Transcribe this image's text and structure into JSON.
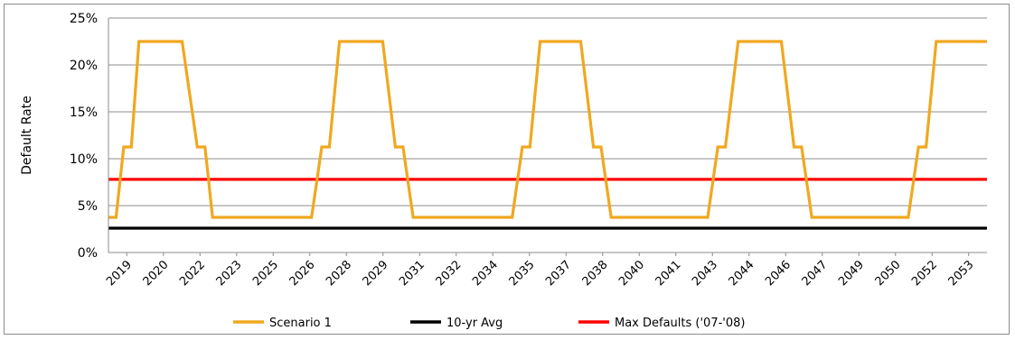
{
  "chart_data": {
    "type": "line",
    "ylabel": "Default Rate",
    "ylim": [
      0,
      25
    ],
    "yticks": [
      "0%",
      "5%",
      "10%",
      "15%",
      "20%",
      "25%"
    ],
    "categories": [
      "2019",
      "2020",
      "2022",
      "2023",
      "2025",
      "2026",
      "2028",
      "2029",
      "2031",
      "2032",
      "2034",
      "2035",
      "2037",
      "2038",
      "2040",
      "2041",
      "2043",
      "2044",
      "2046",
      "2047",
      "2049",
      "2050",
      "2052",
      "2053"
    ],
    "grid": true,
    "legend_position": "bottom",
    "series": [
      {
        "name": "Scenario 1",
        "color": "#f0a820",
        "points": [
          [
            2019.0,
            3.75
          ],
          [
            2019.3,
            3.75
          ],
          [
            2019.6,
            11.25
          ],
          [
            2019.9,
            11.25
          ],
          [
            2020.2,
            22.5
          ],
          [
            2021.9,
            22.5
          ],
          [
            2022.5,
            11.25
          ],
          [
            2022.8,
            11.25
          ],
          [
            2023.1,
            3.75
          ],
          [
            2027.0,
            3.75
          ],
          [
            2027.4,
            11.25
          ],
          [
            2027.7,
            11.25
          ],
          [
            2028.1,
            22.5
          ],
          [
            2029.8,
            22.5
          ],
          [
            2030.3,
            11.25
          ],
          [
            2030.6,
            11.25
          ],
          [
            2031.0,
            3.75
          ],
          [
            2034.9,
            3.75
          ],
          [
            2035.3,
            11.25
          ],
          [
            2035.6,
            11.25
          ],
          [
            2036.0,
            22.5
          ],
          [
            2037.6,
            22.5
          ],
          [
            2038.1,
            11.25
          ],
          [
            2038.4,
            11.25
          ],
          [
            2038.8,
            3.75
          ],
          [
            2042.6,
            3.75
          ],
          [
            2043.0,
            11.25
          ],
          [
            2043.3,
            11.25
          ],
          [
            2043.8,
            22.5
          ],
          [
            2045.5,
            22.5
          ],
          [
            2046.0,
            11.25
          ],
          [
            2046.3,
            11.25
          ],
          [
            2046.7,
            3.75
          ],
          [
            2050.5,
            3.75
          ],
          [
            2050.9,
            11.25
          ],
          [
            2051.2,
            11.25
          ],
          [
            2051.6,
            22.5
          ],
          [
            2053.6,
            22.5
          ]
        ]
      },
      {
        "name": "10-yr Avg",
        "color": "#000000",
        "points": [
          [
            2019.0,
            2.6
          ],
          [
            2053.6,
            2.6
          ]
        ]
      },
      {
        "name": "Max Defaults ('07-'08)",
        "color": "#ff0000",
        "points": [
          [
            2019.0,
            7.8
          ],
          [
            2053.6,
            7.8
          ]
        ]
      }
    ]
  }
}
